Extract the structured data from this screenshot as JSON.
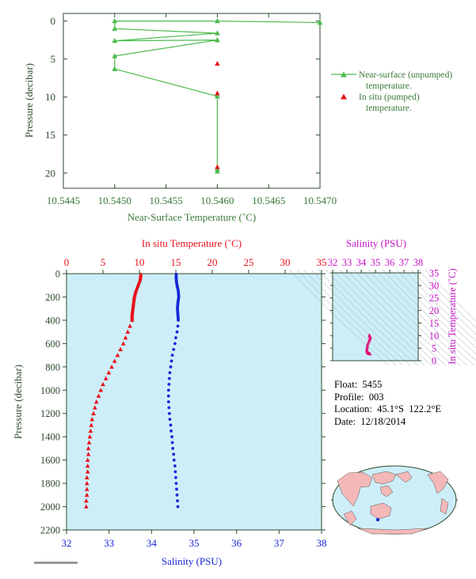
{
  "colors": {
    "green_text": "#3a7a3a",
    "green_line": "#4cbb4c",
    "red": "#e8111a",
    "blue": "#1727d6",
    "magenta": "#c614c6",
    "plot_bg": "#cdeef8",
    "axis_dark": "#2e4a2e"
  },
  "info": {
    "float_label": "Float:",
    "float_value": "5455",
    "profile_label": "Profile:",
    "profile_value": "003",
    "location_label": "Location:",
    "location_value": "45.1°S  122.2°E",
    "date_label": "Date:",
    "date_value": "12/18/2014"
  },
  "chart_data": [
    {
      "type": "line",
      "xlabel": "Near-Surface Temperature (˚C)",
      "ylabel": "Pressure (decibar)",
      "xlim": [
        10.5445,
        10.547
      ],
      "ylim": [
        22,
        -1
      ],
      "xticks": [
        "10.5445",
        "10.5450",
        "10.5455",
        "10.5460",
        "10.5465",
        "10.5470"
      ],
      "yticks": [
        "0",
        "5",
        "10",
        "15",
        "20"
      ],
      "legend_position": "right",
      "series": [
        {
          "name": "Near-surface (unpumped) temperature.",
          "marker": "triangle",
          "points": [
            [
              10.547,
              0.2
            ],
            [
              10.546,
              0.0
            ],
            [
              10.545,
              0.0
            ],
            [
              10.545,
              1.0
            ],
            [
              10.546,
              1.6
            ],
            [
              10.545,
              2.6
            ],
            [
              10.546,
              2.5
            ],
            [
              10.545,
              4.6
            ],
            [
              10.545,
              6.3
            ],
            [
              10.546,
              9.9
            ],
            [
              10.546,
              19.5
            ],
            [
              10.546,
              19.8
            ]
          ]
        },
        {
          "name": "In situ (pumped) temperature.",
          "marker": "triangle",
          "points": [
            [
              10.546,
              5.6
            ],
            [
              10.546,
              9.5
            ],
            [
              10.546,
              19.2
            ]
          ]
        }
      ]
    },
    {
      "type": "scatter",
      "title": "",
      "xlabel_top": "In situ Temperature (˚C)",
      "xlabel_bottom": "Salinity (PSU)",
      "ylabel": "Pressure (decibar)",
      "temperature_xlim": [
        0,
        35
      ],
      "temperature_ticks": [
        "0",
        "5",
        "10",
        "15",
        "20",
        "25",
        "30",
        "35"
      ],
      "salinity_xlim": [
        32,
        38
      ],
      "salinity_ticks": [
        "32",
        "33",
        "34",
        "35",
        "36",
        "37",
        "38"
      ],
      "ylim": [
        2200,
        0
      ],
      "yticks": [
        "0",
        "200",
        "400",
        "600",
        "800",
        "1000",
        "1200",
        "1400",
        "1600",
        "1800",
        "2000",
        "2200"
      ],
      "series": [
        {
          "name": "In situ Temperature",
          "pressure": [
            5,
            50,
            100,
            150,
            200,
            250,
            300,
            350,
            400,
            450,
            500,
            550,
            600,
            650,
            700,
            750,
            800,
            850,
            900,
            950,
            1000,
            1050,
            1100,
            1150,
            1200,
            1250,
            1300,
            1350,
            1400,
            1450,
            1500,
            1550,
            1600,
            1650,
            1700,
            1750,
            1800,
            1850,
            1900,
            1950,
            2000
          ],
          "values": [
            10.2,
            10.1,
            9.8,
            9.5,
            9.3,
            9.2,
            9.1,
            9.0,
            9.0,
            8.7,
            8.4,
            8.1,
            7.8,
            7.4,
            7.0,
            6.6,
            6.2,
            5.8,
            5.4,
            5.0,
            4.7,
            4.4,
            4.1,
            3.9,
            3.7,
            3.5,
            3.4,
            3.3,
            3.2,
            3.1,
            3.0,
            3.0,
            2.9,
            2.9,
            2.9,
            2.8,
            2.8,
            2.8,
            2.8,
            2.7,
            2.7
          ]
        },
        {
          "name": "Salinity",
          "pressure": [
            5,
            50,
            100,
            150,
            200,
            250,
            300,
            350,
            400,
            450,
            500,
            550,
            600,
            650,
            700,
            750,
            800,
            850,
            900,
            950,
            1000,
            1050,
            1100,
            1150,
            1200,
            1250,
            1300,
            1350,
            1400,
            1450,
            1500,
            1550,
            1600,
            1650,
            1700,
            1750,
            1800,
            1850,
            1900,
            1950,
            2000
          ],
          "values": [
            34.58,
            34.58,
            34.6,
            34.63,
            34.64,
            34.62,
            34.61,
            34.62,
            34.63,
            34.62,
            34.6,
            34.57,
            34.55,
            34.52,
            34.49,
            34.47,
            34.45,
            34.43,
            34.42,
            34.41,
            34.4,
            34.4,
            34.4,
            34.41,
            34.42,
            34.43,
            34.45,
            34.46,
            34.48,
            34.49,
            34.5,
            34.52,
            34.53,
            34.55,
            34.56,
            34.57,
            34.58,
            34.59,
            34.6,
            34.61,
            34.62
          ]
        }
      ]
    },
    {
      "type": "scatter",
      "xlabel": "Salinity (PSU)",
      "ylabel": "In situ Temperature (˚C)",
      "xlim": [
        32,
        38
      ],
      "ylim": [
        0,
        35
      ],
      "xticks": [
        "32",
        "33",
        "34",
        "35",
        "36",
        "37",
        "38"
      ],
      "yticks": [
        "0",
        "5",
        "10",
        "15",
        "20",
        "25",
        "30",
        "35"
      ],
      "points": [
        [
          34.58,
          10.2
        ],
        [
          34.6,
          9.8
        ],
        [
          34.64,
          9.3
        ],
        [
          34.62,
          9.0
        ],
        [
          34.6,
          8.4
        ],
        [
          34.55,
          7.8
        ],
        [
          34.49,
          7.0
        ],
        [
          34.45,
          6.2
        ],
        [
          34.42,
          5.4
        ],
        [
          34.4,
          4.7
        ],
        [
          34.4,
          4.1
        ],
        [
          34.42,
          3.7
        ],
        [
          34.45,
          3.4
        ],
        [
          34.48,
          3.2
        ],
        [
          34.5,
          3.0
        ],
        [
          34.53,
          2.9
        ],
        [
          34.56,
          2.9
        ],
        [
          34.58,
          2.8
        ],
        [
          34.6,
          2.8
        ],
        [
          34.62,
          2.7
        ]
      ]
    }
  ]
}
